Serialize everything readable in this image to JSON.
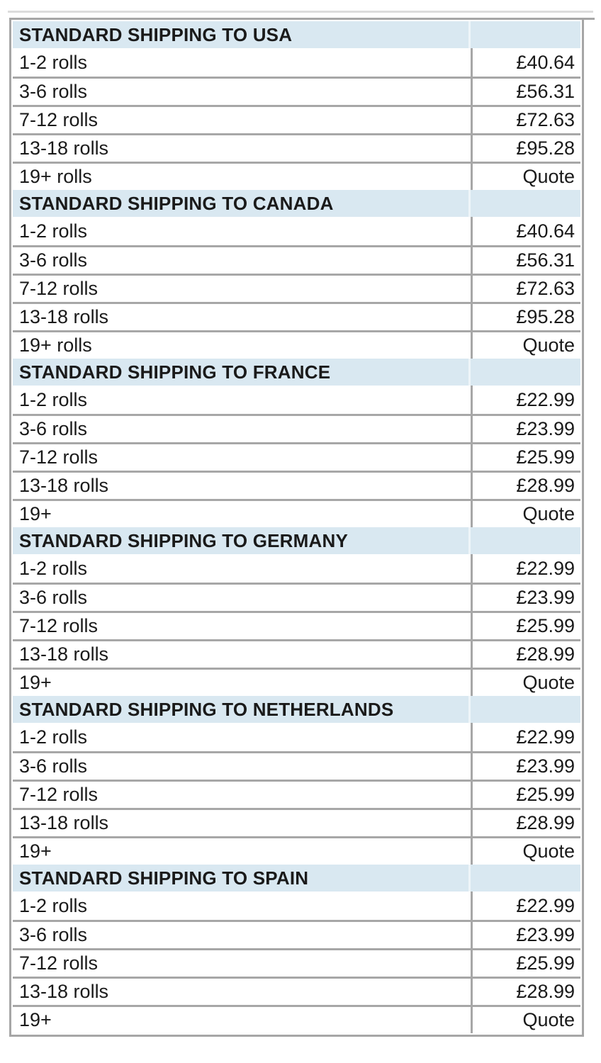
{
  "styles": {
    "header_bg": "#d9e8f1",
    "border_color": "#a6a6a6",
    "inner_border_color": "#a7a7a7",
    "text_color": "#1a1a1a"
  },
  "chart_data": {
    "type": "table",
    "columns": [
      "quantity",
      "price"
    ],
    "currency": "GBP",
    "sections": [
      {
        "title": "STANDARD SHIPPING TO USA",
        "rows": [
          {
            "label": "1-2 rolls",
            "value": "£40.64"
          },
          {
            "label": "3-6 rolls",
            "value": "£56.31"
          },
          {
            "label": "7-12 rolls",
            "value": "£72.63"
          },
          {
            "label": "13-18 rolls",
            "value": "£95.28"
          },
          {
            "label": "19+ rolls",
            "value": "Quote"
          }
        ]
      },
      {
        "title": "STANDARD SHIPPING TO CANADA",
        "rows": [
          {
            "label": "1-2 rolls",
            "value": "£40.64"
          },
          {
            "label": "3-6 rolls",
            "value": "£56.31"
          },
          {
            "label": "7-12 rolls",
            "value": "£72.63"
          },
          {
            "label": "13-18 rolls",
            "value": "£95.28"
          },
          {
            "label": "19+ rolls",
            "value": "Quote"
          }
        ]
      },
      {
        "title": "STANDARD SHIPPING TO FRANCE",
        "rows": [
          {
            "label": "1-2 rolls",
            "value": "£22.99"
          },
          {
            "label": "3-6 rolls",
            "value": "£23.99"
          },
          {
            "label": "7-12 rolls",
            "value": "£25.99"
          },
          {
            "label": "13-18 rolls",
            "value": "£28.99"
          },
          {
            "label": "19+",
            "value": "Quote"
          }
        ]
      },
      {
        "title": "STANDARD SHIPPING TO GERMANY",
        "rows": [
          {
            "label": "1-2 rolls",
            "value": "£22.99"
          },
          {
            "label": "3-6 rolls",
            "value": "£23.99"
          },
          {
            "label": "7-12 rolls",
            "value": "£25.99"
          },
          {
            "label": "13-18 rolls",
            "value": "£28.99"
          },
          {
            "label": "19+",
            "value": "Quote"
          }
        ]
      },
      {
        "title": "STANDARD SHIPPING TO NETHERLANDS",
        "rows": [
          {
            "label": "1-2 rolls",
            "value": "£22.99"
          },
          {
            "label": "3-6 rolls",
            "value": "£23.99"
          },
          {
            "label": "7-12 rolls",
            "value": "£25.99"
          },
          {
            "label": "13-18 rolls",
            "value": "£28.99"
          },
          {
            "label": "19+",
            "value": "Quote"
          }
        ]
      },
      {
        "title": "STANDARD SHIPPING TO SPAIN",
        "rows": [
          {
            "label": "1-2 rolls",
            "value": "£22.99"
          },
          {
            "label": "3-6 rolls",
            "value": "£23.99"
          },
          {
            "label": "7-12 rolls",
            "value": "£25.99"
          },
          {
            "label": "13-18 rolls",
            "value": "£28.99"
          },
          {
            "label": "19+",
            "value": "Quote"
          }
        ]
      }
    ]
  }
}
